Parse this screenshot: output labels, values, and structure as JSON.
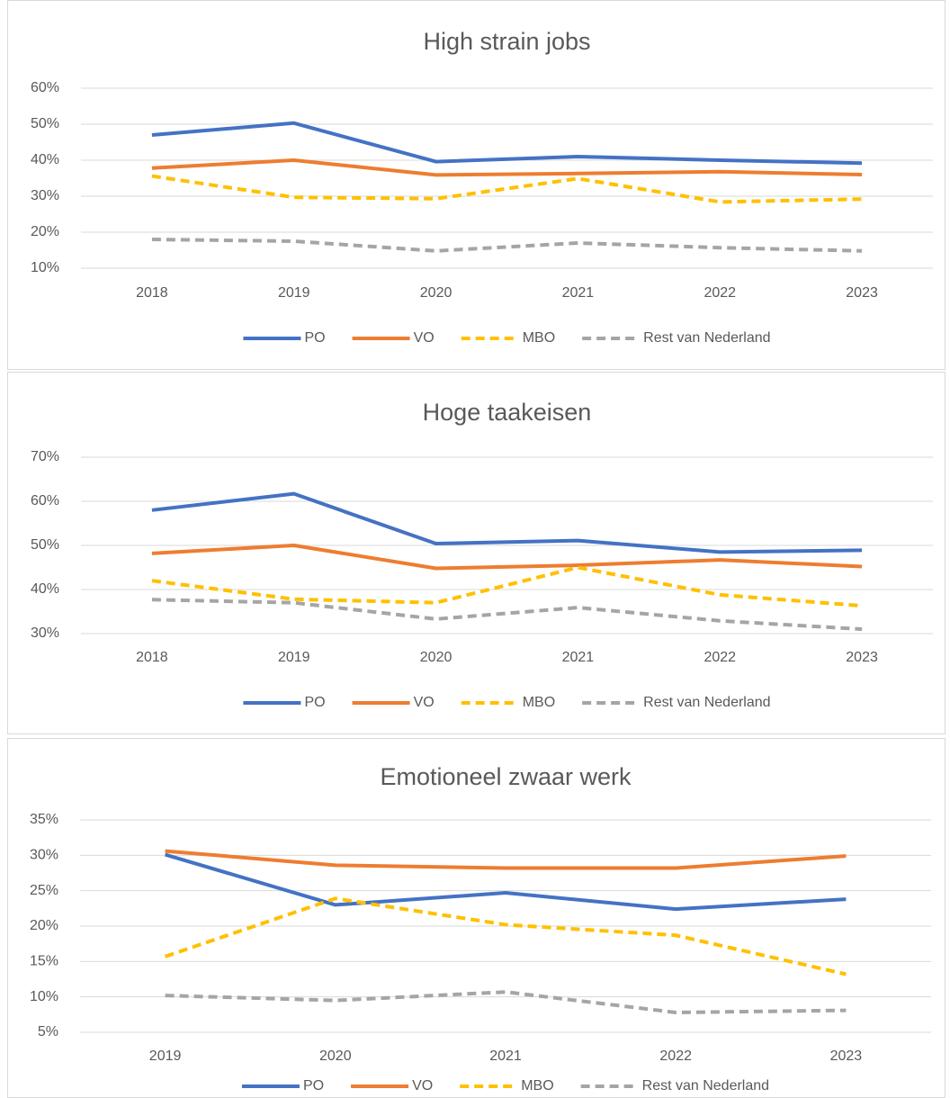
{
  "chart_data": [
    {
      "type": "line",
      "title": "High strain jobs",
      "categories": [
        "2018",
        "2019",
        "2020",
        "2021",
        "2022",
        "2023"
      ],
      "series": [
        {
          "name": "PO",
          "color": "#4472c4",
          "dashed": false,
          "values": [
            47,
            50.3,
            39.6,
            41,
            40,
            39.2
          ]
        },
        {
          "name": "VO",
          "color": "#ed7d31",
          "dashed": false,
          "values": [
            37.8,
            40,
            35.9,
            36.3,
            36.8,
            36
          ]
        },
        {
          "name": "MBO",
          "color": "#ffc000",
          "dashed": true,
          "values": [
            35.6,
            29.7,
            29.3,
            34.9,
            28.4,
            29.2
          ]
        },
        {
          "name": "Rest van Nederland",
          "color": "#a5a5a5",
          "dashed": true,
          "values": [
            18,
            17.5,
            14.8,
            17,
            15.7,
            14.8
          ]
        }
      ],
      "ylim": [
        10,
        60
      ],
      "yticks": [
        {
          "value": 10,
          "label": "10%"
        },
        {
          "value": 20,
          "label": "20%"
        },
        {
          "value": 30,
          "label": "30%"
        },
        {
          "value": 40,
          "label": "40%"
        },
        {
          "value": 50,
          "label": "50%"
        },
        {
          "value": 60,
          "label": "60%"
        }
      ],
      "grid": true,
      "legend": "bottom"
    },
    {
      "type": "line",
      "title": "Hoge taakeisen",
      "categories": [
        "2018",
        "2019",
        "2020",
        "2021",
        "2022",
        "2023"
      ],
      "series": [
        {
          "name": "PO",
          "color": "#4472c4",
          "dashed": false,
          "values": [
            58,
            61.7,
            50.4,
            51.1,
            48.5,
            48.9
          ]
        },
        {
          "name": "VO",
          "color": "#ed7d31",
          "dashed": false,
          "values": [
            48.2,
            50,
            44.8,
            45.5,
            46.7,
            45.2
          ]
        },
        {
          "name": "MBO",
          "color": "#ffc000",
          "dashed": true,
          "values": [
            42,
            37.8,
            37,
            45,
            38.8,
            36.3
          ]
        },
        {
          "name": "Rest van Nederland",
          "color": "#a5a5a5",
          "dashed": true,
          "values": [
            37.7,
            37,
            33.3,
            35.9,
            32.9,
            31
          ]
        }
      ],
      "ylim": [
        30,
        70
      ],
      "yticks": [
        {
          "value": 30,
          "label": "30%"
        },
        {
          "value": 40,
          "label": "40%"
        },
        {
          "value": 50,
          "label": "50%"
        },
        {
          "value": 60,
          "label": "60%"
        },
        {
          "value": 70,
          "label": "70%"
        }
      ],
      "grid": true,
      "legend": "bottom"
    },
    {
      "type": "line",
      "title": "Emotioneel zwaar werk",
      "categories": [
        "2019",
        "2020",
        "2021",
        "2022",
        "2023"
      ],
      "series": [
        {
          "name": "PO",
          "color": "#4472c4",
          "dashed": false,
          "values": [
            30.1,
            23,
            24.7,
            22.4,
            23.8
          ]
        },
        {
          "name": "VO",
          "color": "#ed7d31",
          "dashed": false,
          "values": [
            30.6,
            28.6,
            28.2,
            28.2,
            29.9
          ]
        },
        {
          "name": "MBO",
          "color": "#ffc000",
          "dashed": true,
          "values": [
            15.7,
            23.9,
            20.2,
            18.7,
            13.2
          ]
        },
        {
          "name": "Rest van Nederland",
          "color": "#a5a5a5",
          "dashed": true,
          "values": [
            10.2,
            9.5,
            10.7,
            7.8,
            8.1
          ]
        }
      ],
      "ylim": [
        5,
        35
      ],
      "yticks": [
        {
          "value": 5,
          "label": "5%"
        },
        {
          "value": 10,
          "label": "10%"
        },
        {
          "value": 15,
          "label": "15%"
        },
        {
          "value": 20,
          "label": "20%"
        },
        {
          "value": 25,
          "label": "25%"
        },
        {
          "value": 30,
          "label": "30%"
        },
        {
          "value": 35,
          "label": "35%"
        }
      ],
      "grid": true,
      "legend": "bottom"
    }
  ]
}
